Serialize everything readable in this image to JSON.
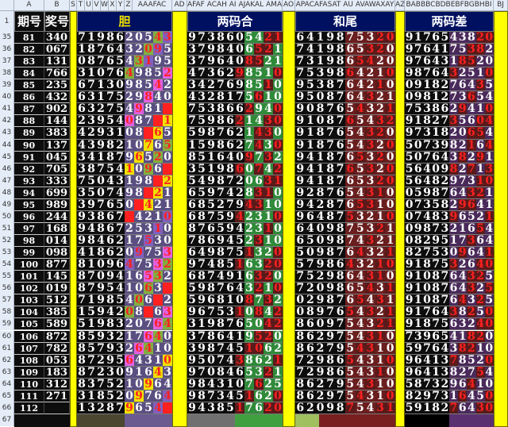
{
  "columns": {
    "a": "A",
    "b": "B",
    "s": "S",
    "t": "T",
    "u": "U",
    "v": "V",
    "w": "W",
    "x": "X",
    "y": "Y",
    "z": "Z",
    "aa_ac": "AAAFAC",
    "ad": "AD",
    "g2": "AFAF ACAH AI AJAKAL AMAN",
    "ao": "AO",
    "g3": "APACAFASAT AU AVAWAXAY",
    "az": "AZ",
    "g4": "BABBBCBDBEBFBGBHBI",
    "bj": "BJ"
  },
  "header": {
    "col_a": "期号",
    "col_b": "奖号",
    "g1": "胆",
    "g2": "两码合",
    "g3": "和尾",
    "g4": "两码差"
  },
  "row_numbers": [
    "1",
    "35",
    "36",
    "37",
    "38",
    "39",
    "40",
    "41",
    "42",
    "43",
    "44",
    "45",
    "46",
    "47",
    "48",
    "49",
    "50",
    "51",
    "52",
    "53",
    "54",
    "55",
    "56",
    "57",
    "58",
    "59",
    "60",
    "61",
    "62",
    "63",
    "64",
    "65",
    "66",
    "67"
  ],
  "rows": [
    {
      "id": "81",
      "num": "340",
      "g1": "7198620543",
      "g2": "9738605421",
      "g3": "6419875320",
      "g4": "9176543820"
    },
    {
      "id": "82",
      "num": "067",
      "g1": "1876432095",
      "g2": "3798406521",
      "g3": "7419865320",
      "g4": "9764175382"
    },
    {
      "id": "83",
      "num": "131",
      "g1": "0876543195",
      "g2": "3796408521",
      "g3": "7319865420",
      "g4": "9764318520"
    },
    {
      "id": "84",
      "num": "766",
      "g1": "3107649852",
      "g2": "4736298510",
      "g3": "7539864210",
      "g4": "9876432510"
    },
    {
      "id": "85",
      "num": "235",
      "g1": "6713098542",
      "g2": "3427698510",
      "g3": "9538764210",
      "g4": "0918276435"
    },
    {
      "id": "86",
      "num": "432",
      "g1": "6317529840",
      "g2": "4328175610",
      "g3": "9508764321",
      "g4": "0981273654"
    },
    {
      "id": "87",
      "num": "902",
      "g1": "6327549810",
      "g2": "7538662940",
      "g3": "9087654321",
      "g4": "7538629410"
    },
    {
      "id": "88",
      "num": "144",
      "g1": "2395408761",
      "g2": "7598621430",
      "g3": "9108765432",
      "g4": "9182735604"
    },
    {
      "id": "89",
      "num": "383",
      "g1": "4293108765",
      "g2": "5987621430",
      "g3": "9187654320",
      "g4": "9731820654"
    },
    {
      "id": "90",
      "num": "137",
      "g1": "4398210765",
      "g2": "1598627430",
      "g3": "9187654320",
      "g4": "5073982164"
    },
    {
      "id": "91",
      "num": "045",
      "g1": "3418796520",
      "g2": "8516409732",
      "g3": "9418765320",
      "g4": "5076438291"
    },
    {
      "id": "92",
      "num": "705",
      "g1": "3875410962",
      "g2": "3519860742",
      "g3": "9418765320",
      "g4": "5640982713"
    },
    {
      "id": "93",
      "num": "333",
      "g1": "7504319862",
      "g2": "5498720631",
      "g3": "9418765320",
      "g4": "5648297310"
    },
    {
      "id": "94",
      "num": "699",
      "g1": "3507498621",
      "g2": "6597428310",
      "g3": "9287654310",
      "g4": "0598764321"
    },
    {
      "id": "95",
      "num": "989",
      "g1": "3976508421",
      "g2": "6852794310",
      "g3": "9428765310",
      "g4": "0735829641"
    },
    {
      "id": "96",
      "num": "244",
      "g1": "9386754210",
      "g2": "6875942310",
      "g3": "9648753210",
      "g4": "0748396521"
    },
    {
      "id": "97",
      "num": "168",
      "g1": "9486725310",
      "g2": "8765942310",
      "g3": "6409875321",
      "g4": "0987321654"
    },
    {
      "id": "98",
      "num": "014",
      "g1": "9846217530",
      "g2": "7869452310",
      "g3": "6509874321",
      "g4": "0829517364"
    },
    {
      "id": "99",
      "num": "098",
      "g1": "4186209753",
      "g2": "6498751320",
      "g3": "5098764321",
      "g4": "8275309641"
    },
    {
      "id": "100",
      "num": "877",
      "g1": "8109647532",
      "g2": "9748516320",
      "g3": "5798643210",
      "g4": "9187532640"
    },
    {
      "id": "101",
      "num": "145",
      "g1": "8709416532",
      "g2": "6874916320",
      "g3": "7529864310",
      "g4": "9108764325"
    },
    {
      "id": "102",
      "num": "019",
      "g1": "8795410632",
      "g2": "5987643210",
      "g3": "7209865431",
      "g4": "9108764325"
    },
    {
      "id": "103",
      "num": "512",
      "g1": "7198540632",
      "g2": "5968108732",
      "g3": "0298765431",
      "g4": "9108764325"
    },
    {
      "id": "104",
      "num": "385",
      "g1": "1594208763",
      "g2": "9675310842",
      "g3": "0897654321",
      "g4": "9176438250"
    },
    {
      "id": "105",
      "num": "589",
      "g1": "5198320764",
      "g2": "3198765042",
      "g3": "8609754321",
      "g4": "9187563240"
    },
    {
      "id": "106",
      "num": "872",
      "g1": "8593217640",
      "g2": "3786419520",
      "g3": "8629754310",
      "g4": "7396541820"
    },
    {
      "id": "107",
      "num": "782",
      "g1": "8579326410",
      "g2": "3987451062",
      "g3": "8627954310",
      "g4": "5976438210"
    },
    {
      "id": "108",
      "num": "053",
      "g1": "8729564310",
      "g2": "9507438621",
      "g3": "7298654310",
      "g4": "9641378520"
    },
    {
      "id": "109",
      "num": "183",
      "g1": "8723091643",
      "g2": "9708465321",
      "g3": "7298654310",
      "g4": "9641382754"
    },
    {
      "id": "110",
      "num": "312",
      "g1": "8375210964",
      "g2": "9843107625",
      "g3": "8627954310",
      "g4": "5873296410"
    },
    {
      "id": "111",
      "num": "271",
      "g1": "3185209764",
      "g2": "9873451620",
      "g3": "8629754310",
      "g4": "8297316450"
    },
    {
      "id": "112",
      "num": "",
      "g1": "1328796540",
      "g2": "9438517620",
      "g3": "6209875431",
      "g4": "5918276430"
    }
  ],
  "colors": {
    "grid_bg": "#0d0d0d",
    "header_bg": "#001060",
    "digit_white": "#ffffff",
    "digit_red": "#ff2020",
    "yellow": "#ffff00",
    "g1_hot": [
      "#ff2020",
      "#f0e000",
      "#e060e0",
      "#80b040",
      "#8060c0"
    ],
    "g1_band_bottom": [
      "#4a4630",
      "#6a5a90"
    ],
    "g2_band_bottom": [
      "#707070",
      "#40a040",
      "#40a040"
    ],
    "g3_band_bottom": [
      "#a0c060",
      "#7a1f1f"
    ],
    "g4_band_bottom": [
      "#000000",
      "#5a3070"
    ]
  }
}
